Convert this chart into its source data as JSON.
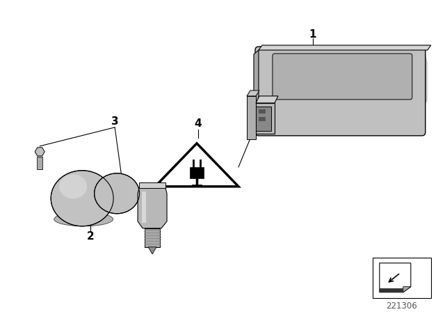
{
  "bg_color": "#ffffff",
  "line_color": "#000000",
  "label_1": "1",
  "label_2": "2",
  "label_3": "3",
  "label_4": "4",
  "diagram_number": "221306"
}
